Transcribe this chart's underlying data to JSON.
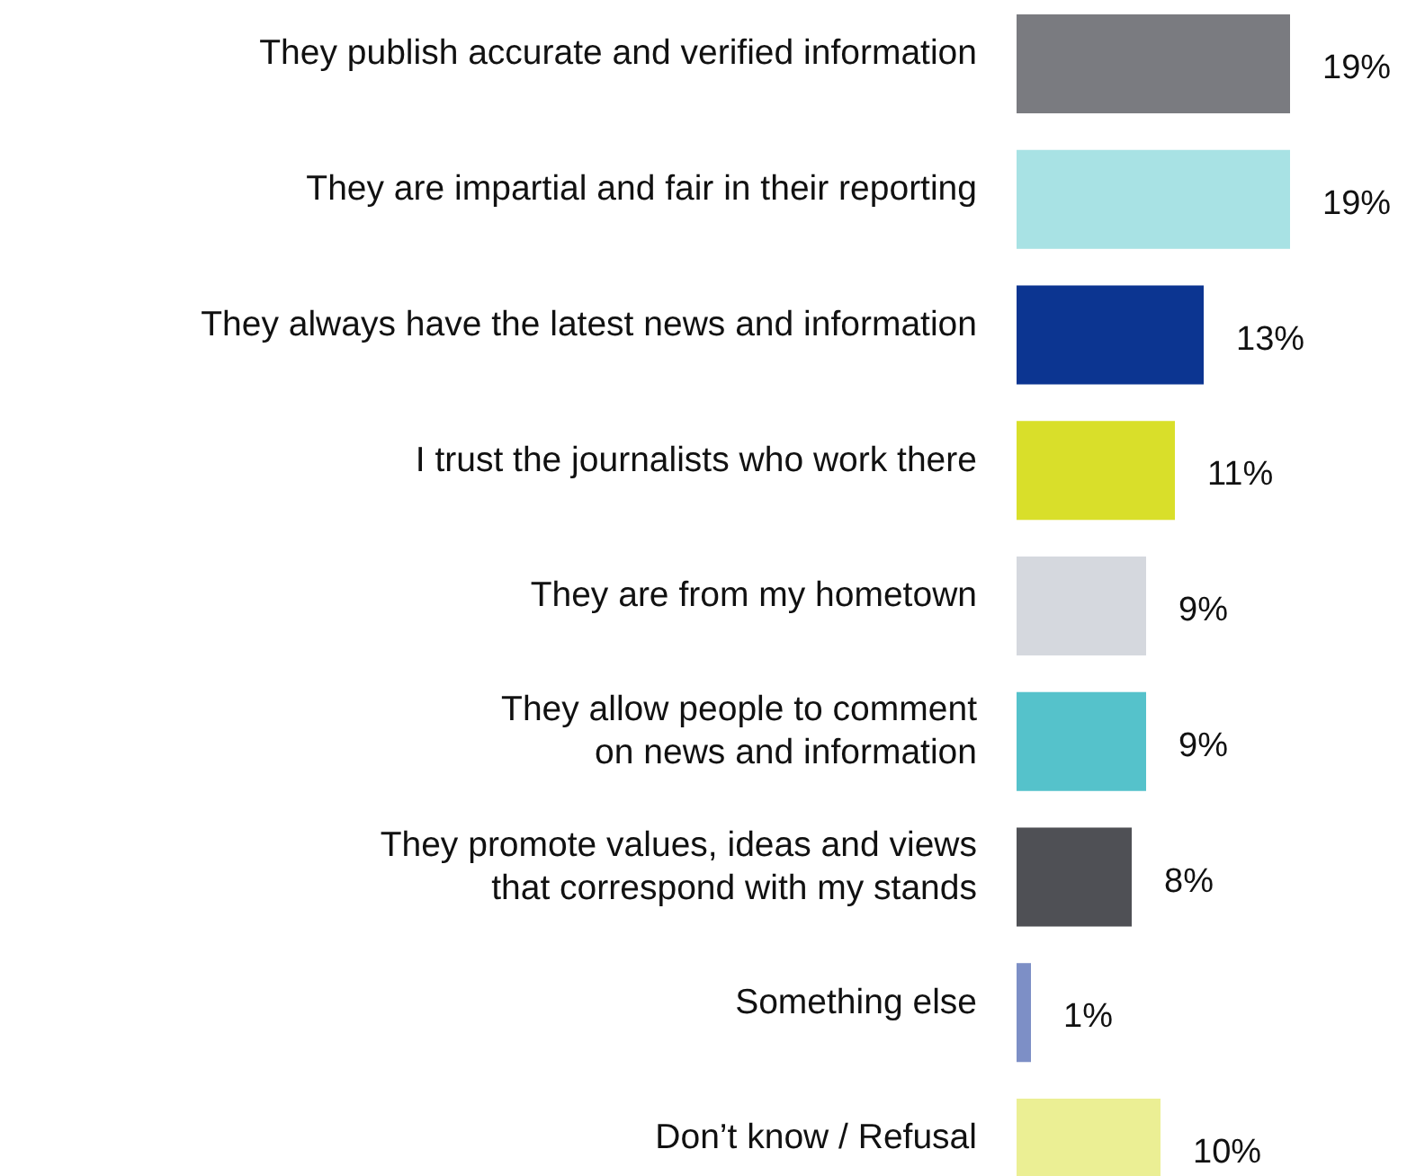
{
  "chart_data": {
    "type": "bar",
    "orientation": "horizontal",
    "categories": [
      "They publish accurate and verified information",
      "They are impartial and fair in their reporting",
      "They always have the latest news and information",
      "I trust the journalists who work there",
      "They are from my hometown",
      "They allow people to comment\non news and information",
      "They promote values, ideas and views\nthat correspond with my stands",
      "Something else",
      "Don’t know / Refusal"
    ],
    "values": [
      19,
      19,
      13,
      11,
      9,
      9,
      8,
      1,
      10
    ],
    "colors": [
      "#7a7b80",
      "#a8e2e4",
      "#0c3591",
      "#d9df2a",
      "#d5d8de",
      "#55c2cb",
      "#4f5055",
      "#7d8fc6",
      "#ebef94"
    ],
    "value_labels": [
      "19%",
      "19%",
      "13%",
      "11%",
      "9%",
      "9%",
      "8%",
      "1%",
      "10%"
    ]
  }
}
